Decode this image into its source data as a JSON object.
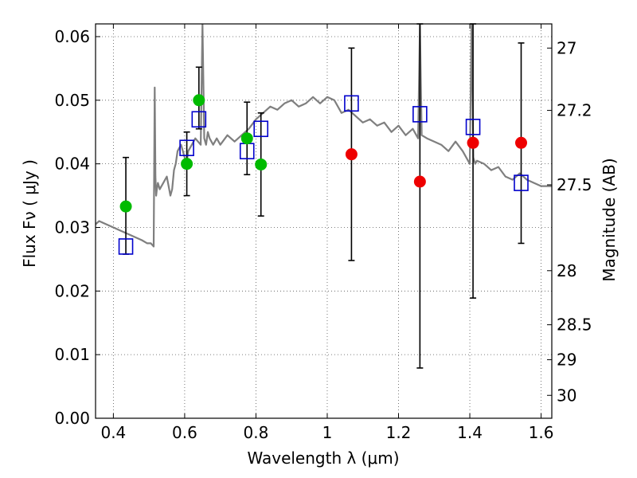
{
  "chart_data": {
    "type": "scatter",
    "xlabel": "Wavelength  λ (μm)",
    "ylabel": "Flux  Fν  ( μJy )",
    "ylabel_right": "Magnitude (AB)",
    "xlim": [
      0.35,
      1.63
    ],
    "ylim": [
      0.0,
      0.062
    ],
    "grid": true,
    "x_ticks": [
      0.4,
      0.6,
      0.8,
      1.0,
      1.2,
      1.4,
      1.6
    ],
    "x_tick_labels": [
      "0.4",
      "0.6",
      "0.8",
      "1",
      "1.2",
      "1.4",
      "1.6"
    ],
    "y_ticks": [
      0.0,
      0.01,
      0.02,
      0.03,
      0.04,
      0.05,
      0.06
    ],
    "y_tick_labels": [
      "0.00",
      "0.01",
      "0.02",
      "0.03",
      "0.04",
      "0.05",
      "0.06"
    ],
    "right_ticks": [
      {
        "label": "27",
        "flux": 0.0582
      },
      {
        "label": "27.2",
        "flux": 0.0484
      },
      {
        "label": "27.5",
        "flux": 0.0367
      },
      {
        "label": "28",
        "flux": 0.0232
      },
      {
        "label": "28.5",
        "flux": 0.0147
      },
      {
        "label": "29",
        "flux": 0.0092
      },
      {
        "label": "30",
        "flux": 0.0036
      }
    ],
    "series": [
      {
        "marker": "square-open",
        "color": "#0000cc",
        "points": [
          {
            "x": 0.435,
            "y": 0.027
          },
          {
            "x": 0.606,
            "y": 0.0425
          },
          {
            "x": 0.64,
            "y": 0.047
          },
          {
            "x": 0.775,
            "y": 0.042
          },
          {
            "x": 0.814,
            "y": 0.0455
          },
          {
            "x": 1.068,
            "y": 0.0495
          },
          {
            "x": 1.26,
            "y": 0.0478
          },
          {
            "x": 1.409,
            "y": 0.0458
          },
          {
            "x": 1.544,
            "y": 0.037
          }
        ]
      },
      {
        "marker": "circle",
        "color": "#00bb00",
        "points": [
          {
            "x": 0.435,
            "y": 0.0333
          },
          {
            "x": 0.606,
            "y": 0.04
          },
          {
            "x": 0.64,
            "y": 0.05
          },
          {
            "x": 0.775,
            "y": 0.044
          },
          {
            "x": 0.814,
            "y": 0.0399
          }
        ]
      },
      {
        "marker": "circle",
        "color": "#ee0000",
        "points": [
          {
            "x": 1.068,
            "y": 0.0415
          },
          {
            "x": 1.26,
            "y": 0.0372
          },
          {
            "x": 1.409,
            "y": 0.0433
          },
          {
            "x": 1.544,
            "y": 0.0433
          }
        ]
      }
    ],
    "error_bars": [
      {
        "x": 0.435,
        "low": 0.0258,
        "high": 0.041
      },
      {
        "x": 0.606,
        "low": 0.035,
        "high": 0.045
      },
      {
        "x": 0.64,
        "low": 0.0455,
        "high": 0.0552
      },
      {
        "x": 0.775,
        "low": 0.0383,
        "high": 0.0497
      },
      {
        "x": 0.814,
        "low": 0.0318,
        "high": 0.048
      },
      {
        "x": 1.068,
        "low": 0.0248,
        "high": 0.0582
      },
      {
        "x": 1.26,
        "low": 0.0079,
        "high": 0.062
      },
      {
        "x": 1.409,
        "low": 0.0189,
        "high": 0.062
      },
      {
        "x": 1.544,
        "low": 0.0275,
        "high": 0.059
      }
    ],
    "model_spectrum": {
      "color": "#7f7f7f",
      "x": [
        0.35,
        0.36,
        0.38,
        0.4,
        0.42,
        0.44,
        0.46,
        0.48,
        0.495,
        0.505,
        0.513,
        0.516,
        0.518,
        0.52,
        0.522,
        0.525,
        0.53,
        0.54,
        0.55,
        0.56,
        0.565,
        0.57,
        0.575,
        0.58,
        0.59,
        0.6,
        0.605,
        0.61,
        0.62,
        0.63,
        0.645,
        0.65,
        0.655,
        0.66,
        0.665,
        0.67,
        0.68,
        0.69,
        0.7,
        0.72,
        0.74,
        0.76,
        0.78,
        0.8,
        0.82,
        0.84,
        0.86,
        0.88,
        0.9,
        0.92,
        0.94,
        0.96,
        0.98,
        1.0,
        1.02,
        1.04,
        1.06,
        1.08,
        1.1,
        1.12,
        1.14,
        1.16,
        1.18,
        1.2,
        1.22,
        1.24,
        1.255,
        1.26,
        1.265,
        1.28,
        1.3,
        1.32,
        1.34,
        1.36,
        1.38,
        1.4,
        1.405,
        1.41,
        1.415,
        1.42,
        1.44,
        1.46,
        1.48,
        1.5,
        1.52,
        1.54,
        1.56,
        1.58,
        1.6,
        1.63
      ],
      "y": [
        0.0305,
        0.031,
        0.0305,
        0.03,
        0.0295,
        0.029,
        0.0285,
        0.028,
        0.0275,
        0.0275,
        0.027,
        0.052,
        0.038,
        0.035,
        0.036,
        0.037,
        0.036,
        0.037,
        0.038,
        0.035,
        0.036,
        0.039,
        0.04,
        0.042,
        0.043,
        0.041,
        0.04,
        0.042,
        0.043,
        0.044,
        0.043,
        0.062,
        0.044,
        0.043,
        0.045,
        0.044,
        0.043,
        0.044,
        0.043,
        0.0445,
        0.0435,
        0.0445,
        0.0455,
        0.047,
        0.048,
        0.049,
        0.0485,
        0.0495,
        0.05,
        0.049,
        0.0495,
        0.0505,
        0.0495,
        0.0505,
        0.05,
        0.048,
        0.0485,
        0.0475,
        0.0465,
        0.047,
        0.046,
        0.0465,
        0.045,
        0.046,
        0.0445,
        0.0455,
        0.044,
        0.062,
        0.0445,
        0.044,
        0.0435,
        0.043,
        0.042,
        0.0435,
        0.042,
        0.04,
        0.062,
        0.041,
        0.04,
        0.0405,
        0.04,
        0.039,
        0.0395,
        0.038,
        0.0375,
        0.0385,
        0.0375,
        0.037,
        0.0365,
        0.0365
      ]
    }
  }
}
